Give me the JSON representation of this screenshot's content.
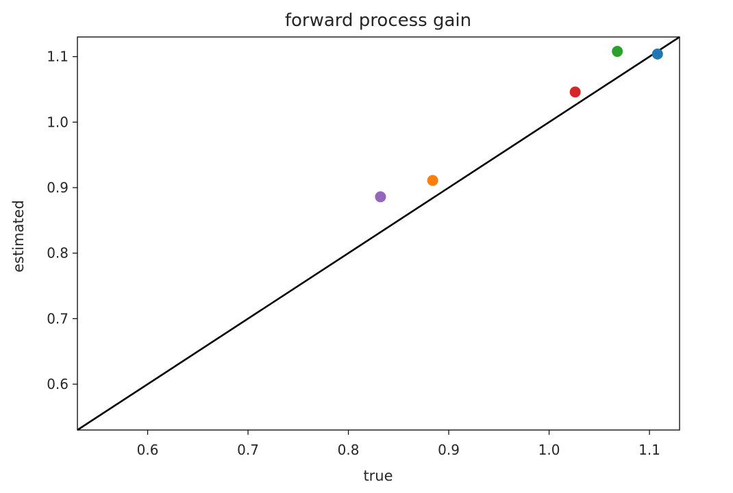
{
  "chart_data": {
    "type": "scatter",
    "title": "forward process gain",
    "xlabel": "true",
    "ylabel": "estimated",
    "xlim": [
      0.53,
      1.13
    ],
    "ylim": [
      0.53,
      1.13
    ],
    "x_ticks": [
      "0.6",
      "0.7",
      "0.8",
      "0.9",
      "1.0",
      "1.1"
    ],
    "y_ticks": [
      "0.6",
      "0.7",
      "0.8",
      "0.9",
      "1.0",
      "1.1"
    ],
    "grid": false,
    "points": [
      {
        "x": 1.108,
        "y": 1.104,
        "color": "#1f77b4"
      },
      {
        "x": 0.884,
        "y": 0.911,
        "color": "#ff7f0e"
      },
      {
        "x": 1.068,
        "y": 1.108,
        "color": "#2ca02c"
      },
      {
        "x": 1.026,
        "y": 1.046,
        "color": "#d62728"
      },
      {
        "x": 0.832,
        "y": 0.886,
        "color": "#9467bd"
      }
    ],
    "reference_line": {
      "type": "identity",
      "color": "#000000"
    }
  }
}
